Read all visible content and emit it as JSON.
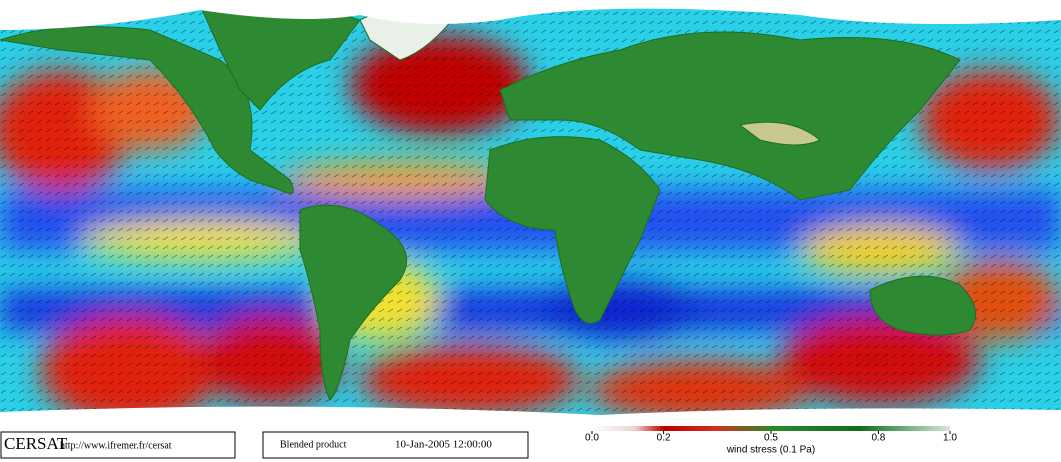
{
  "footer": {
    "logo": "CERSAT",
    "url": "http://www.ifremer.fr/cersat",
    "product": "Blended product",
    "timestamp": "10-Jan-2005 12:00:00"
  },
  "colorbar": {
    "range": [
      0,
      1
    ],
    "ticks": [
      {
        "value": 0,
        "label": "0.0"
      },
      0.2,
      0.5,
      0.8,
      {
        "value": 1,
        "label": "1.0"
      }
    ],
    "label": "wind stress (0.1 Pa)"
  }
}
